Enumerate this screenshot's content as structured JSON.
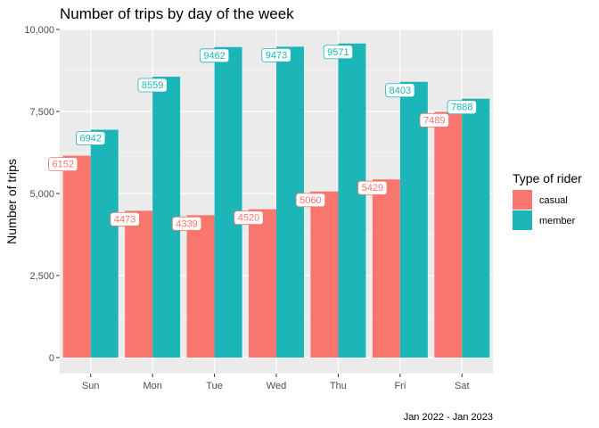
{
  "chart_data": {
    "type": "bar",
    "title": "Number of trips by day of the week",
    "xlabel": "",
    "ylabel": "Number of trips",
    "caption": "Jan 2022 - Jan 2023",
    "categories": [
      "Sun",
      "Mon",
      "Tue",
      "Wed",
      "Thu",
      "Fri",
      "Sat"
    ],
    "series": [
      {
        "name": "casual",
        "color": "#F8766D",
        "values": [
          6152,
          4473,
          4339,
          4520,
          5060,
          5429,
          7489
        ]
      },
      {
        "name": "member",
        "color": "#1CB5B8",
        "values": [
          6942,
          8559,
          9462,
          9473,
          9571,
          8403,
          7888
        ]
      }
    ],
    "ylim": [
      0,
      10000
    ],
    "yticks": [
      0,
      2500,
      5000,
      7500,
      10000
    ],
    "ytick_labels": [
      "0",
      "2,500",
      "5,000",
      "7,500",
      "10,000"
    ],
    "legend": {
      "title": "Type of rider",
      "position": "right"
    },
    "grid": true,
    "panel_background": "#EBEBEB"
  }
}
